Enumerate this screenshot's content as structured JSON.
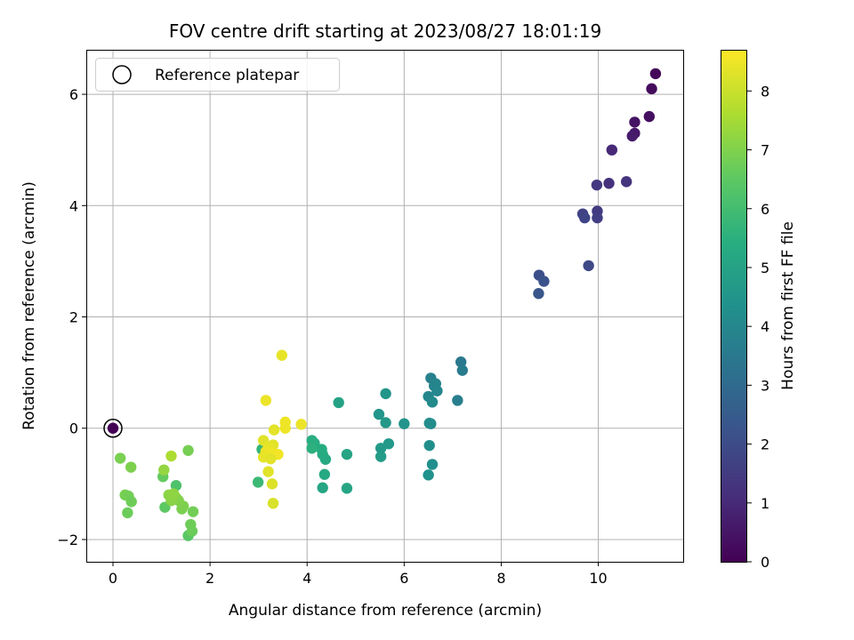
{
  "chart_data": {
    "type": "scatter",
    "title": "FOV centre drift starting at 2023/08/27 18:01:19",
    "xlabel": "Angular distance from reference (arcmin)",
    "ylabel": "Rotation from reference (arcmin)",
    "xlim": [
      -0.55,
      11.75
    ],
    "ylim": [
      -2.4,
      6.8
    ],
    "xticks": [
      0,
      2,
      4,
      6,
      8,
      10
    ],
    "yticks": [
      -2,
      0,
      2,
      4,
      6
    ],
    "xtick_labels": [
      "0",
      "2",
      "4",
      "6",
      "8",
      "10"
    ],
    "ytick_labels": [
      "−2",
      "0",
      "2",
      "4",
      "6"
    ],
    "grid": true,
    "legend": {
      "placement": "top-left",
      "entries": [
        "Reference platepar"
      ]
    },
    "colorbar": {
      "label": "Hours from first FF file",
      "range": [
        0,
        8.7
      ],
      "ticks": [
        0,
        1,
        2,
        3,
        4,
        5,
        6,
        7,
        8
      ],
      "colormap": "viridis"
    },
    "reference_point": {
      "x": 0,
      "y": 0
    },
    "points": [
      {
        "x": 11.18,
        "y": 6.37,
        "c": 0.15
      },
      {
        "x": 11.1,
        "y": 6.1,
        "c": 0.25
      },
      {
        "x": 11.05,
        "y": 5.6,
        "c": 0.35
      },
      {
        "x": 10.75,
        "y": 5.5,
        "c": 0.45
      },
      {
        "x": 10.75,
        "y": 5.3,
        "c": 0.55
      },
      {
        "x": 10.7,
        "y": 5.25,
        "c": 0.65
      },
      {
        "x": 10.28,
        "y": 5.0,
        "c": 1.0
      },
      {
        "x": 10.22,
        "y": 4.4,
        "c": 1.2
      },
      {
        "x": 10.58,
        "y": 4.43,
        "c": 1.3
      },
      {
        "x": 9.97,
        "y": 4.37,
        "c": 1.4
      },
      {
        "x": 9.98,
        "y": 3.9,
        "c": 1.5
      },
      {
        "x": 9.98,
        "y": 3.78,
        "c": 1.6
      },
      {
        "x": 9.68,
        "y": 3.85,
        "c": 1.7
      },
      {
        "x": 9.72,
        "y": 3.78,
        "c": 1.8
      },
      {
        "x": 9.8,
        "y": 2.92,
        "c": 1.9
      },
      {
        "x": 8.78,
        "y": 2.75,
        "c": 2.1
      },
      {
        "x": 8.88,
        "y": 2.64,
        "c": 2.2
      },
      {
        "x": 8.77,
        "y": 2.42,
        "c": 2.3
      },
      {
        "x": 7.17,
        "y": 1.19,
        "c": 3.5
      },
      {
        "x": 7.2,
        "y": 1.04,
        "c": 3.6
      },
      {
        "x": 7.1,
        "y": 0.5,
        "c": 3.7
      },
      {
        "x": 6.55,
        "y": 0.9,
        "c": 3.8
      },
      {
        "x": 6.65,
        "y": 0.8,
        "c": 3.85
      },
      {
        "x": 6.62,
        "y": 0.76,
        "c": 3.9
      },
      {
        "x": 6.68,
        "y": 0.67,
        "c": 3.95
      },
      {
        "x": 6.5,
        "y": 0.57,
        "c": 4.0
      },
      {
        "x": 6.58,
        "y": 0.47,
        "c": 4.1
      },
      {
        "x": 6.55,
        "y": 0.08,
        "c": 4.15
      },
      {
        "x": 6.52,
        "y": 0.09,
        "c": 4.2
      },
      {
        "x": 6.52,
        "y": -0.31,
        "c": 4.25
      },
      {
        "x": 6.58,
        "y": -0.65,
        "c": 4.3
      },
      {
        "x": 6.5,
        "y": -0.84,
        "c": 4.35
      },
      {
        "x": 6.0,
        "y": 0.08,
        "c": 4.45
      },
      {
        "x": 5.62,
        "y": 0.62,
        "c": 4.5
      },
      {
        "x": 5.48,
        "y": 0.25,
        "c": 4.55
      },
      {
        "x": 5.62,
        "y": 0.1,
        "c": 4.6
      },
      {
        "x": 5.68,
        "y": -0.28,
        "c": 4.65
      },
      {
        "x": 5.52,
        "y": -0.36,
        "c": 4.7
      },
      {
        "x": 5.52,
        "y": -0.51,
        "c": 4.75
      },
      {
        "x": 4.65,
        "y": 0.46,
        "c": 5.0
      },
      {
        "x": 4.82,
        "y": -0.47,
        "c": 5.05
      },
      {
        "x": 4.82,
        "y": -1.08,
        "c": 5.1
      },
      {
        "x": 4.32,
        "y": -1.07,
        "c": 5.15
      },
      {
        "x": 4.36,
        "y": -0.83,
        "c": 5.2
      },
      {
        "x": 4.38,
        "y": -0.56,
        "c": 5.25
      },
      {
        "x": 4.32,
        "y": -0.47,
        "c": 5.3
      },
      {
        "x": 4.3,
        "y": -0.38,
        "c": 5.35
      },
      {
        "x": 4.15,
        "y": -0.27,
        "c": 5.4
      },
      {
        "x": 4.1,
        "y": -0.22,
        "c": 5.45
      },
      {
        "x": 4.1,
        "y": -0.36,
        "c": 5.5
      },
      {
        "x": 3.07,
        "y": -0.38,
        "c": 5.7
      },
      {
        "x": 2.99,
        "y": -0.97,
        "c": 5.85
      },
      {
        "x": 1.3,
        "y": -1.03,
        "c": 6.2
      },
      {
        "x": 1.55,
        "y": -1.93,
        "c": 6.4
      },
      {
        "x": 1.07,
        "y": -1.42,
        "c": 6.5
      },
      {
        "x": 1.03,
        "y": -0.87,
        "c": 6.6
      },
      {
        "x": 1.63,
        "y": -1.85,
        "c": 6.7
      },
      {
        "x": 1.6,
        "y": -1.73,
        "c": 6.75
      },
      {
        "x": 1.65,
        "y": -1.5,
        "c": 6.8
      },
      {
        "x": 1.55,
        "y": -0.4,
        "c": 6.85
      },
      {
        "x": 1.42,
        "y": -1.45,
        "c": 6.9
      },
      {
        "x": 1.45,
        "y": -1.4,
        "c": 6.95
      },
      {
        "x": 1.35,
        "y": -1.3,
        "c": 7.0
      },
      {
        "x": 1.3,
        "y": -1.25,
        "c": 7.05
      },
      {
        "x": 1.2,
        "y": -1.3,
        "c": 7.1
      },
      {
        "x": 1.15,
        "y": -1.2,
        "c": 7.15
      },
      {
        "x": 1.25,
        "y": -1.18,
        "c": 7.2
      },
      {
        "x": 1.05,
        "y": -0.75,
        "c": 7.25
      },
      {
        "x": 0.15,
        "y": -0.54,
        "c": 6.9
      },
      {
        "x": 0.37,
        "y": -0.7,
        "c": 6.95
      },
      {
        "x": 0.25,
        "y": -1.2,
        "c": 6.85
      },
      {
        "x": 0.32,
        "y": -1.22,
        "c": 6.8
      },
      {
        "x": 0.38,
        "y": -1.32,
        "c": 6.75
      },
      {
        "x": 0.3,
        "y": -1.52,
        "c": 6.7
      },
      {
        "x": 1.2,
        "y": -0.5,
        "c": 7.6
      },
      {
        "x": 3.48,
        "y": 1.31,
        "c": 8.4
      },
      {
        "x": 3.15,
        "y": 0.5,
        "c": 8.45
      },
      {
        "x": 3.55,
        "y": 0.11,
        "c": 8.5
      },
      {
        "x": 3.55,
        "y": 0.0,
        "c": 8.5
      },
      {
        "x": 3.88,
        "y": 0.07,
        "c": 8.45
      },
      {
        "x": 3.32,
        "y": -0.03,
        "c": 8.35
      },
      {
        "x": 3.1,
        "y": -0.22,
        "c": 8.3
      },
      {
        "x": 3.3,
        "y": -0.3,
        "c": 8.35
      },
      {
        "x": 3.2,
        "y": -0.35,
        "c": 8.4
      },
      {
        "x": 3.15,
        "y": -0.42,
        "c": 8.45
      },
      {
        "x": 3.28,
        "y": -0.45,
        "c": 8.5
      },
      {
        "x": 3.4,
        "y": -0.47,
        "c": 8.55
      },
      {
        "x": 3.1,
        "y": -0.52,
        "c": 8.4
      },
      {
        "x": 3.25,
        "y": -0.55,
        "c": 8.35
      },
      {
        "x": 3.2,
        "y": -0.78,
        "c": 8.3
      },
      {
        "x": 3.28,
        "y": -1.0,
        "c": 8.25
      },
      {
        "x": 3.3,
        "y": -1.35,
        "c": 8.2
      }
    ]
  }
}
